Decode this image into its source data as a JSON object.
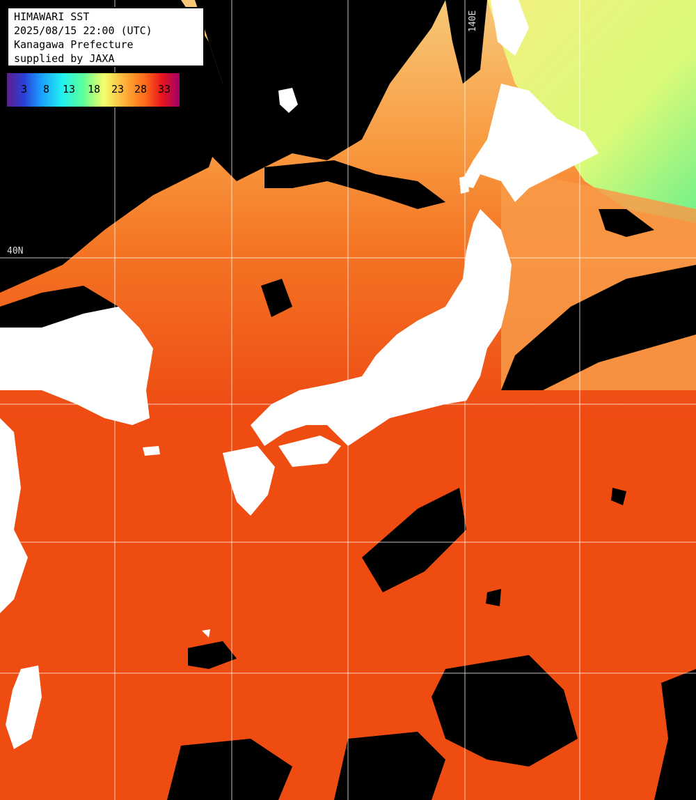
{
  "title_box": {
    "line1": "HIMAWARI SST",
    "line2": "2025/08/15 22:00 (UTC)",
    "line3": "Kanagawa Prefecture",
    "line4": "supplied by JAXA"
  },
  "legend": {
    "ticks": [
      "3",
      "8",
      "13",
      "18",
      "23",
      "28",
      "33"
    ],
    "colors": [
      "#5b1f8c",
      "#2a3fd8",
      "#1aa0ff",
      "#22f0f0",
      "#5cff9a",
      "#f2ff6a",
      "#ffb23a",
      "#ff6a1a",
      "#e8141c",
      "#a0006a"
    ]
  },
  "grid": {
    "lon_label": "140E",
    "lat_label": "40N"
  },
  "colors": {
    "land": "#ffffff",
    "cloud": "#000000",
    "warm_sea": "#f04a10",
    "mid_sea": "#f9852c",
    "cool_sea": "#f8c060",
    "cold_sea": "#c9ff78",
    "grid": "#ffffff"
  }
}
